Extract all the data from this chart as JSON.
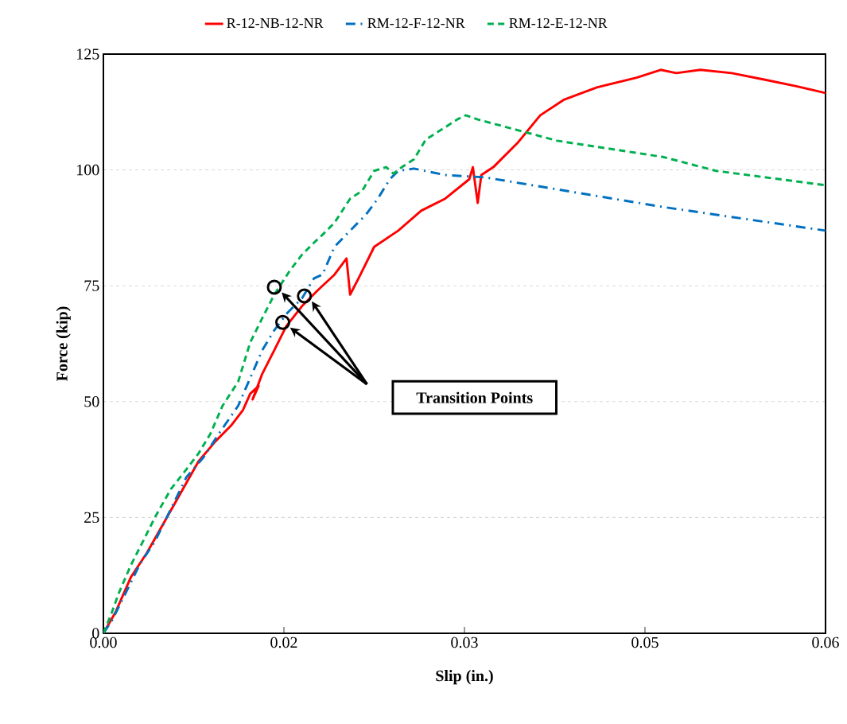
{
  "chart_data": {
    "type": "line",
    "xlabel": "Slip (in.)",
    "ylabel": "Force (kip)",
    "xlim": [
      0,
      0.06
    ],
    "ylim": [
      0,
      125
    ],
    "xticks": [
      {
        "value": 0,
        "label": "0.00"
      },
      {
        "value": 0.015,
        "label": "0.02"
      },
      {
        "value": 0.03,
        "label": "0.03"
      },
      {
        "value": 0.045,
        "label": "0.05"
      },
      {
        "value": 0.06,
        "label": "0.06"
      }
    ],
    "yticks": [
      0,
      25,
      50,
      75,
      100,
      125
    ],
    "grid": "y",
    "legend": "top",
    "marker": "none",
    "annotations": [
      "Transition Points"
    ],
    "series": [
      {
        "name": "R-12-NB-12-NR",
        "color": "#ff0000",
        "line_style": "solid",
        "x": [
          0,
          0.001,
          0.0023,
          0.0036,
          0.0053,
          0.0066,
          0.0079,
          0.0093,
          0.0106,
          0.0116,
          0.0122,
          0.0129,
          0.0124,
          0.0132,
          0.0142,
          0.0152,
          0.0165,
          0.0178,
          0.0192,
          0.0202,
          0.0205,
          0.0212,
          0.0225,
          0.0245,
          0.0264,
          0.0284,
          0.0304,
          0.0307,
          0.0311,
          0.0314,
          0.0324,
          0.0344,
          0.0363,
          0.0383,
          0.041,
          0.0443,
          0.0463,
          0.0476,
          0.0496,
          0.0522,
          0.0549,
          0.0575,
          0.06
        ],
        "values": [
          0,
          4.5,
          12.2,
          17.3,
          25.1,
          31.1,
          37.1,
          41.4,
          44.8,
          48.2,
          51.7,
          53.4,
          50.5,
          56.0,
          61.1,
          66.3,
          70.6,
          74.0,
          77.4,
          80.9,
          73.1,
          76.6,
          83.4,
          86.9,
          91.2,
          93.8,
          98.0,
          100.6,
          92.9,
          98.9,
          100.6,
          105.8,
          111.8,
          115.2,
          117.8,
          119.9,
          121.6,
          120.9,
          121.6,
          120.9,
          119.5,
          118.1,
          116.6
        ]
      },
      {
        "name": "RM-12-F-12-NR",
        "color": "#0070c0",
        "line_style": "dashdot",
        "x": [
          0,
          0.0007,
          0.0017,
          0.003,
          0.0043,
          0.0056,
          0.0069,
          0.0083,
          0.0096,
          0.0112,
          0.0122,
          0.0132,
          0.0142,
          0.0152,
          0.0165,
          0.0175,
          0.0182,
          0.0192,
          0.0205,
          0.0218,
          0.0228,
          0.0238,
          0.0245,
          0.0258,
          0.0284,
          0.0317,
          0.0465,
          0.06
        ],
        "values": [
          0,
          2.7,
          7.9,
          14.8,
          19.9,
          26.8,
          33.7,
          37.9,
          43.1,
          49.1,
          55.1,
          61.1,
          65.4,
          68.9,
          72.3,
          76.6,
          77.4,
          83.4,
          86.9,
          90.3,
          93.8,
          98.0,
          99.8,
          100.3,
          98.9,
          98.4,
          92.0,
          86.9
        ]
      },
      {
        "type": "scatter",
        "color": "#000000",
        "marker": "circle",
        "x": [
          0.0142,
          0.0167,
          0.0149
        ],
        "values": [
          74.7,
          72.8,
          67.1
        ]
      },
      {
        "name": "RM-12-E-12-NR",
        "color": "#00b050",
        "line_style": "dashed",
        "x": [
          0,
          0.0007,
          0.0013,
          0.0023,
          0.0033,
          0.0043,
          0.0056,
          0.0069,
          0.0079,
          0.0089,
          0.0099,
          0.0112,
          0.0122,
          0.0132,
          0.0142,
          0.0155,
          0.0165,
          0.0175,
          0.0182,
          0.0192,
          0.0205,
          0.0215,
          0.0225,
          0.0235,
          0.0241,
          0.0248,
          0.0258,
          0.0268,
          0.0284,
          0.0294,
          0.0301,
          0.0311,
          0.0377,
          0.0465,
          0.0509,
          0.06
        ],
        "values": [
          0,
          4.5,
          8.8,
          14.8,
          19.9,
          25.1,
          31.1,
          35.4,
          38.8,
          43.1,
          49.1,
          54.3,
          62.8,
          68.0,
          73.1,
          78.3,
          81.7,
          84.3,
          86.0,
          88.6,
          93.8,
          95.5,
          99.8,
          100.6,
          99.2,
          100.6,
          102.3,
          106.6,
          109.2,
          110.9,
          111.8,
          110.9,
          106.3,
          102.8,
          99.8,
          96.7
        ]
      }
    ]
  }
}
